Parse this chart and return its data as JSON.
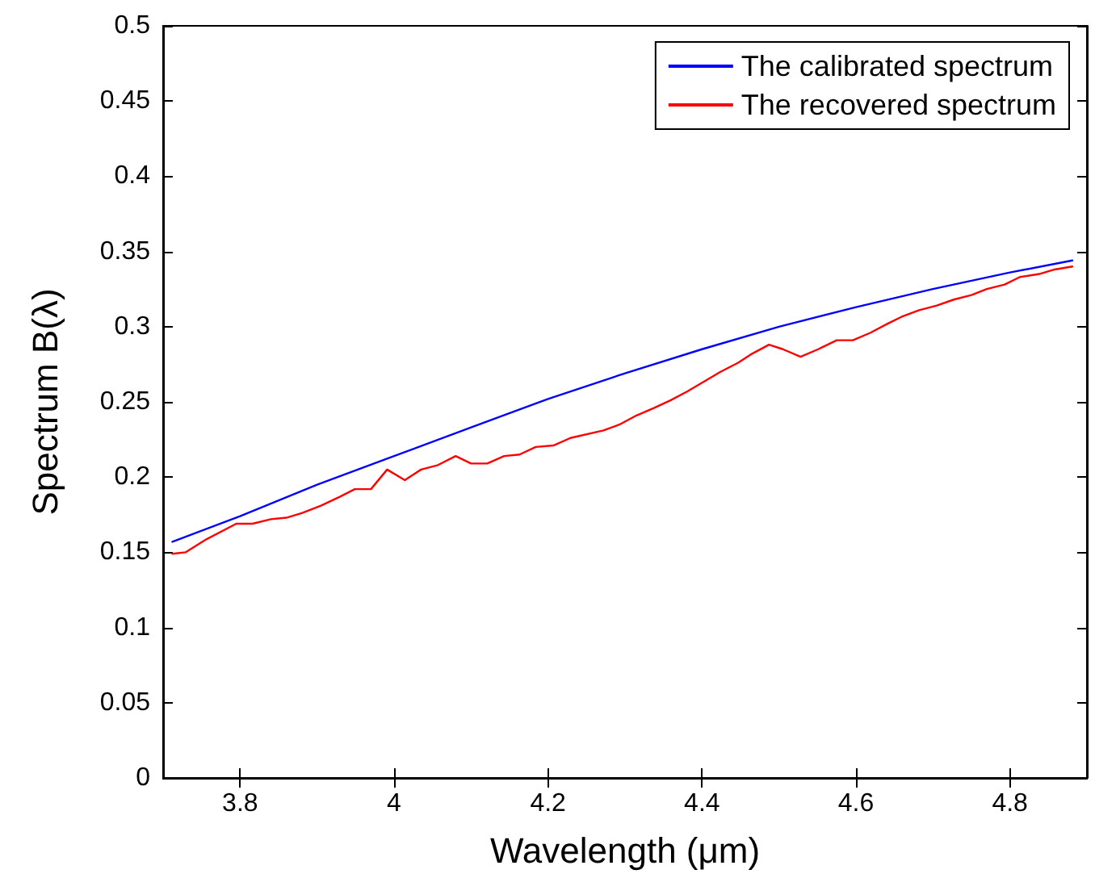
{
  "chart_data": {
    "type": "line",
    "xlabel": "Wavelength (μm)",
    "ylabel": "Spectrum B(λ)",
    "xlim": [
      3.7,
      4.9
    ],
    "xticks": [
      3.8,
      4,
      4.2,
      4.4,
      4.6,
      4.8
    ],
    "ylim": [
      0,
      0.5
    ],
    "yticks": [
      0,
      0.05,
      0.1,
      0.15,
      0.2,
      0.25,
      0.3,
      0.35,
      0.4,
      0.45,
      0.5
    ],
    "grid": false,
    "legend": "top right",
    "marker": "none",
    "line_style": "solid",
    "series": [
      {
        "name": "The calibrated spectrum",
        "color": "#0000ff",
        "x": [
          3.712,
          3.8,
          3.9,
          4.0,
          4.1,
          4.2,
          4.3,
          4.4,
          4.5,
          4.6,
          4.7,
          4.8,
          4.881
        ],
        "values": [
          0.157,
          0.174,
          0.195,
          0.214,
          0.233,
          0.252,
          0.269,
          0.285,
          0.3,
          0.313,
          0.325,
          0.336,
          0.344
        ]
      },
      {
        "name": "The recovered spectrum",
        "color": "#ff0000",
        "x": [
          3.712,
          3.729,
          3.754,
          3.795,
          3.816,
          3.84,
          3.86,
          3.88,
          3.905,
          3.93,
          3.949,
          3.97,
          3.991,
          4.014,
          4.035,
          4.057,
          4.08,
          4.1,
          4.121,
          4.143,
          4.163,
          4.184,
          4.207,
          4.229,
          4.272,
          4.293,
          4.315,
          4.338,
          4.359,
          4.381,
          4.401,
          4.424,
          4.447,
          4.465,
          4.487,
          4.505,
          4.528,
          4.551,
          4.575,
          4.596,
          4.619,
          4.641,
          4.661,
          4.682,
          4.705,
          4.727,
          4.75,
          4.77,
          4.793,
          4.813,
          4.838,
          4.858,
          4.881
        ],
        "values": [
          0.149,
          0.15,
          0.158,
          0.169,
          0.169,
          0.172,
          0.173,
          0.176,
          0.181,
          0.187,
          0.192,
          0.192,
          0.205,
          0.198,
          0.205,
          0.208,
          0.214,
          0.209,
          0.209,
          0.214,
          0.215,
          0.22,
          0.221,
          0.226,
          0.231,
          0.235,
          0.241,
          0.246,
          0.251,
          0.257,
          0.263,
          0.27,
          0.276,
          0.282,
          0.288,
          0.285,
          0.28,
          0.285,
          0.291,
          0.291,
          0.296,
          0.302,
          0.307,
          0.311,
          0.314,
          0.318,
          0.321,
          0.325,
          0.328,
          0.333,
          0.335,
          0.338,
          0.34
        ]
      }
    ]
  }
}
